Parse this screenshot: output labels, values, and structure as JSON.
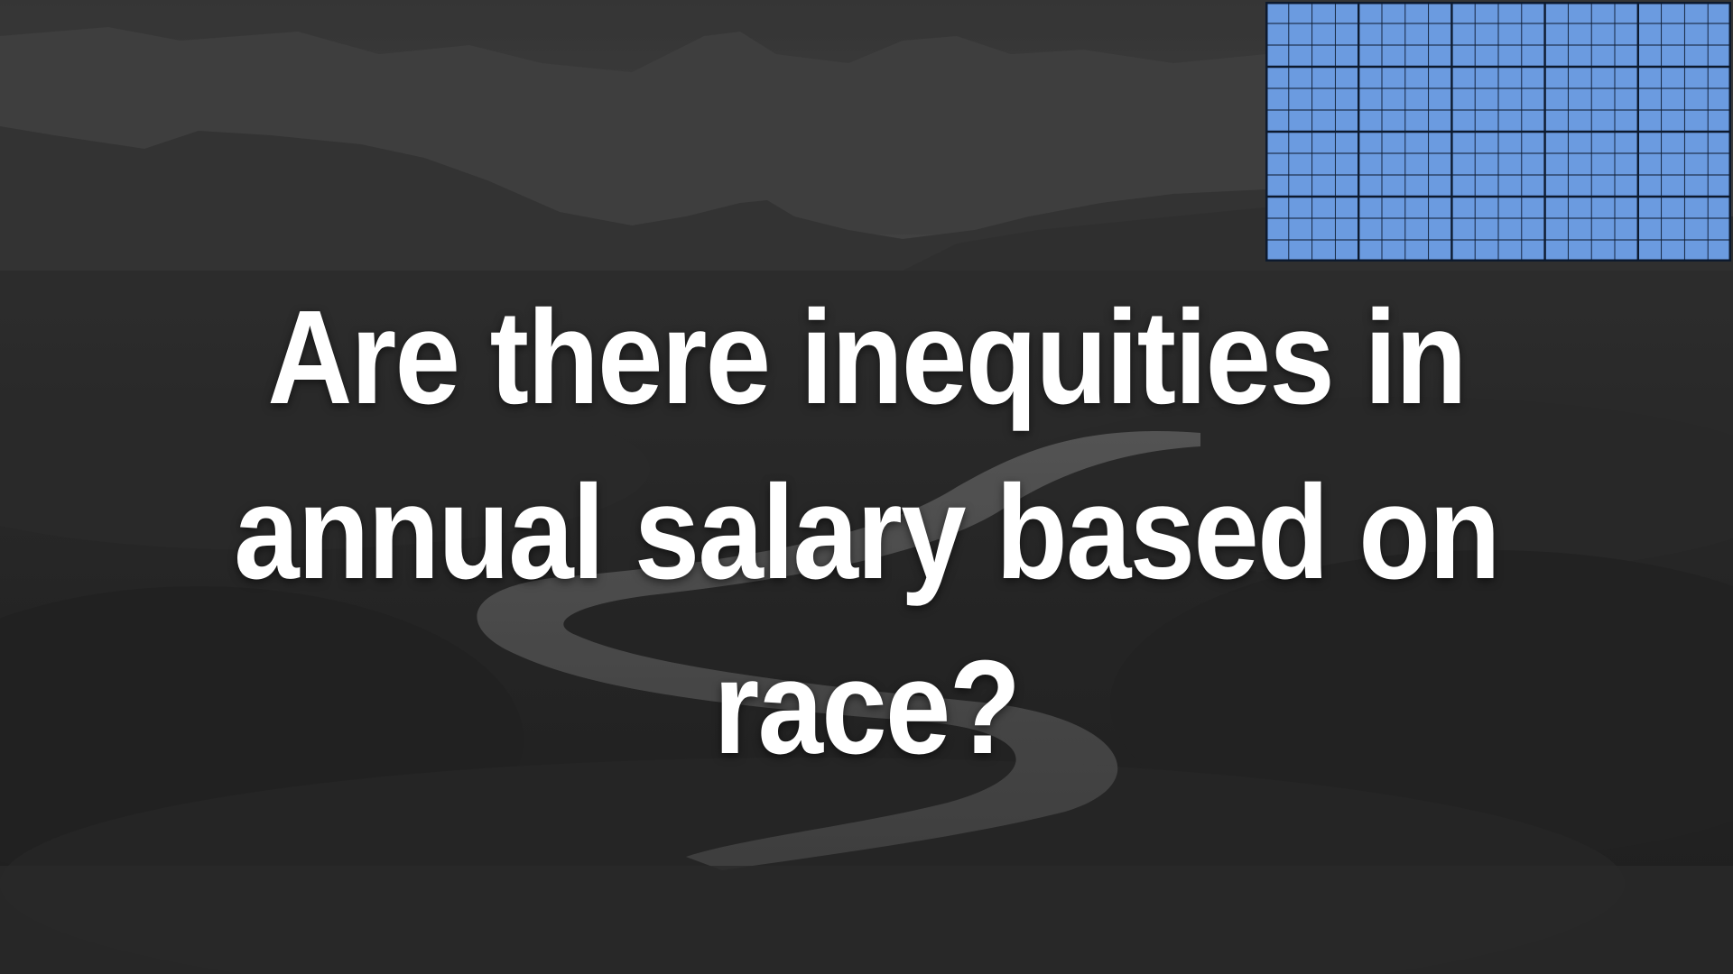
{
  "headline": "Are there inequities in annual salary based on race?",
  "background": {
    "icon": "landscape-photo",
    "style": "grayscale",
    "description_color": "#6d6d6d"
  },
  "grid_logo": {
    "icon": "blue-grid-logo",
    "fill_color": "#6b9be0",
    "line_color": "#0d1a2e"
  },
  "colors": {
    "text": "#ffffff"
  }
}
